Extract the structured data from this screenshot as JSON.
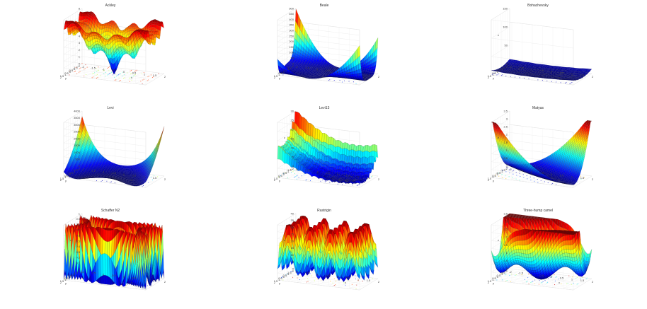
{
  "figure": {
    "colormap": "jet",
    "panel_titles": [
      "Ackley",
      "Beale",
      "Bohachevsky",
      "Levi",
      "Levi13",
      "Matyas",
      "Schaffer N2",
      "Rastrigin",
      "Three-hump camel"
    ]
  },
  "chart_data": [
    {
      "type": "surface",
      "title": "Ackley",
      "function": "ackley",
      "x_range": [
        -2,
        2
      ],
      "y_range": [
        -2,
        2
      ],
      "z_ticks": [
        0,
        1,
        2,
        3,
        4,
        5,
        6,
        7,
        8
      ],
      "x_ticks": [
        -2,
        -1.5,
        -1,
        -0.5,
        0,
        0.5,
        1,
        1.5,
        2
      ],
      "y_ticks": [
        -2,
        -1.5,
        -1,
        -0.5,
        0,
        0.5,
        1,
        1.5,
        2
      ],
      "xlabel": "x",
      "ylabel": "y",
      "zlabel": "",
      "contour_on_floor": true,
      "grid": true
    },
    {
      "type": "surface",
      "title": "Beale",
      "function": "beale",
      "x_range": [
        -2,
        2
      ],
      "y_range": [
        -2,
        2
      ],
      "z_ticks": [
        0,
        50,
        100,
        150,
        200,
        250,
        300,
        350,
        400,
        450,
        500
      ],
      "x_ticks": [
        -2,
        -1.5,
        -1,
        -0.5,
        0,
        0.5,
        1,
        1.5,
        2
      ],
      "y_ticks": [
        -2,
        -1.5,
        -1,
        -0.5,
        0,
        0.5,
        1,
        1.5,
        2
      ],
      "xlabel": "x",
      "ylabel": "y",
      "zlabel": "",
      "contour_on_floor": true,
      "grid": true
    },
    {
      "type": "surface",
      "title": "Bohachevsky",
      "function": "bohachevsky",
      "x_range": [
        -2,
        2
      ],
      "y_range": [
        -2,
        2
      ],
      "z_ticks": [
        0,
        50,
        100,
        150
      ],
      "x_ticks": [
        -2,
        -1.5,
        -1,
        -0.5,
        0,
        0.5,
        1,
        1.5,
        2
      ],
      "y_ticks": [
        -2,
        -1.5,
        -1,
        -0.5,
        0,
        0.5,
        1,
        1.5,
        2
      ],
      "xlabel": "x",
      "ylabel": "y",
      "zlabel": "z",
      "contour_on_floor": true,
      "grid": true
    },
    {
      "type": "surface",
      "title": "Levi",
      "function": "levi",
      "x_range": [
        -2,
        2
      ],
      "y_range": [
        -2,
        2
      ],
      "z_ticks": [
        0,
        500,
        1000,
        1500,
        2000,
        2500,
        3000,
        3500,
        4000
      ],
      "x_ticks": [
        -2,
        -1.5,
        -1,
        -0.5,
        0,
        0.5,
        1,
        1.5,
        2
      ],
      "y_ticks": [
        -2,
        -1.5,
        -1,
        -0.5,
        0,
        0.5,
        1,
        1.5,
        2
      ],
      "xlabel": "x",
      "ylabel": "y",
      "zlabel": "",
      "contour_on_floor": true,
      "grid": true
    },
    {
      "type": "surface",
      "title": "Levi13",
      "function": "levi13",
      "x_range": [
        -2,
        2
      ],
      "y_range": [
        -2,
        2
      ],
      "z_ticks": [
        0,
        5,
        10,
        15,
        20,
        25,
        30
      ],
      "x_ticks": [
        -2,
        -1.5,
        -1,
        -0.5,
        0,
        0.5,
        1,
        1.5,
        2
      ],
      "y_ticks": [
        -2,
        -1.5,
        -1,
        -0.5,
        0,
        0.5,
        1,
        1.5,
        2
      ],
      "xlabel": "x",
      "ylabel": "y",
      "zlabel": "z",
      "contour_on_floor": true,
      "grid": true
    },
    {
      "type": "surface",
      "title": "Matyas",
      "function": "matyas",
      "x_range": [
        -2,
        2
      ],
      "y_range": [
        -2,
        2
      ],
      "z_ticks": [
        0,
        0.5,
        1,
        1.5,
        2,
        2.5,
        3,
        3.5
      ],
      "x_ticks": [
        -2,
        -1.5,
        -1,
        -0.5,
        0,
        0.5,
        1,
        1.5,
        2
      ],
      "y_ticks": [
        -2,
        -1.5,
        -1,
        -0.5,
        0,
        0.5,
        1,
        1.5,
        2
      ],
      "xlabel": "x",
      "ylabel": "y",
      "zlabel": "z",
      "contour_on_floor": true,
      "grid": true
    },
    {
      "type": "surface",
      "title": "Schaffer N2",
      "function": "schaffer2",
      "x_range": [
        -2,
        2
      ],
      "y_range": [
        -2,
        2
      ],
      "z_ticks": [
        0,
        0.1,
        0.2,
        0.3,
        0.4,
        0.5,
        0.6,
        0.7,
        0.8,
        0.9,
        1
      ],
      "x_ticks": [
        -2,
        -1.5,
        -1,
        -0.5,
        0,
        0.5,
        1,
        1.5,
        2
      ],
      "y_ticks": [
        -2,
        -1.5,
        -1,
        -0.5,
        0,
        0.5,
        1,
        1.5,
        2
      ],
      "xlabel": "x",
      "ylabel": "y",
      "zlabel": "z",
      "contour_on_floor": true,
      "grid": true
    },
    {
      "type": "surface",
      "title": "Rastrigin",
      "function": "rastrigin",
      "x_range": [
        -2,
        2
      ],
      "y_range": [
        -2,
        2
      ],
      "z_ticks": [
        0,
        5,
        10,
        15,
        20,
        25,
        30,
        35,
        40
      ],
      "x_ticks": [
        -2,
        -1.5,
        -1,
        -0.5,
        0,
        0.5,
        1,
        1.5,
        2
      ],
      "y_ticks": [
        -2,
        -1.5,
        -1,
        -0.5,
        0,
        0.5,
        1,
        1.5,
        2
      ],
      "xlabel": "x",
      "ylabel": "y",
      "zlabel": "z",
      "contour_on_floor": true,
      "grid": true
    },
    {
      "type": "surface",
      "title": "Three-hump camel",
      "function": "threehump",
      "x_range": [
        -2,
        2
      ],
      "y_range": [
        -2,
        2
      ],
      "z_ticks": [
        0,
        0.5,
        1,
        1.5,
        2,
        2.5,
        3,
        3.5
      ],
      "x_ticks": [
        -2,
        -1.5,
        -1,
        -0.5,
        0,
        0.5,
        1,
        1.5,
        2
      ],
      "y_ticks": [
        -2,
        -1.5,
        -1,
        -0.5,
        0,
        0.5,
        1,
        1.5,
        2
      ],
      "xlabel": "x",
      "ylabel": "y",
      "zlabel": "z",
      "contour_on_floor": true,
      "grid": true
    }
  ]
}
